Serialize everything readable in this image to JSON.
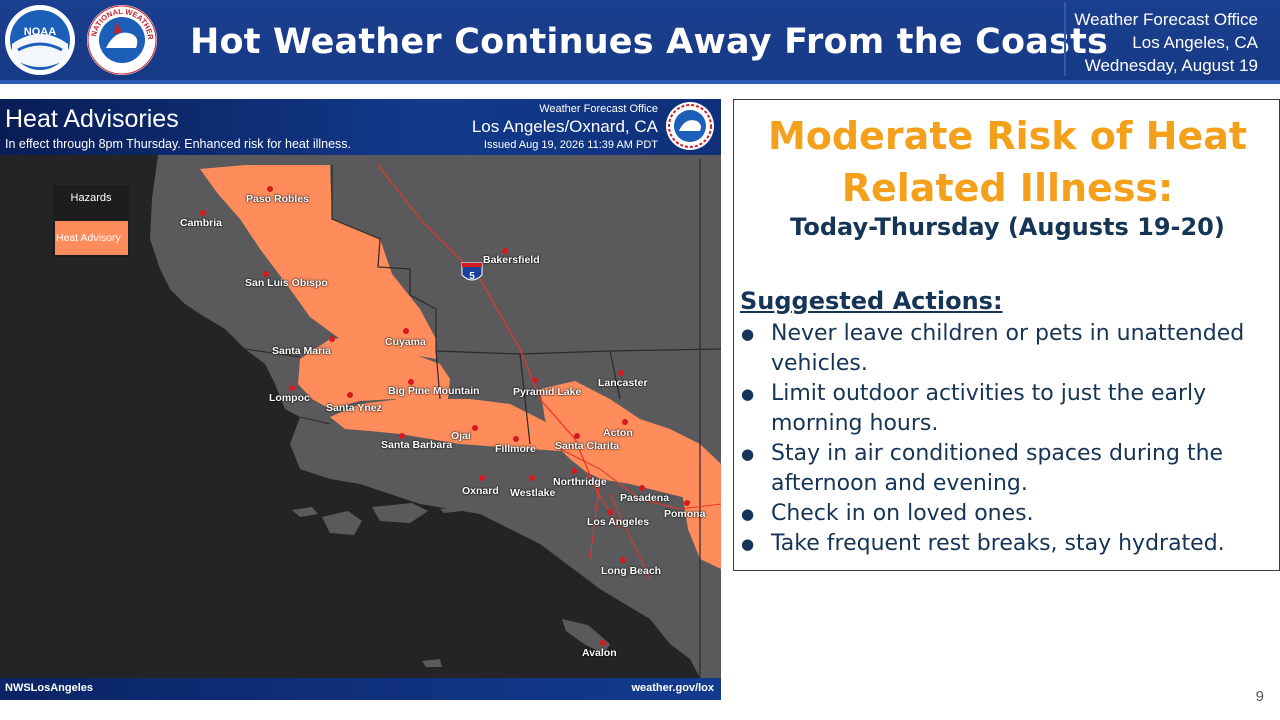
{
  "header": {
    "title": "Hot Weather Continues Away From the Coasts",
    "office_line1": "Weather Forecast Office",
    "office_line2": "Los Angeles, CA",
    "office_date": "Wednesday, August 19",
    "logos": [
      "noaa-logo",
      "national-weather-service-logo"
    ],
    "logo_text": {
      "noaa": "NOAA",
      "nws": "NATIONAL WEATHER SERVICE"
    }
  },
  "map": {
    "title": "Heat Advisories",
    "subtitle": "In effect through 8pm Thursday. Enhanced risk for heat illness.",
    "office_small": "Weather Forecast Office",
    "office_name": "Los Angeles/Oxnard, CA",
    "issued": "Issued Aug 19, 2026 11:39 AM PDT",
    "legend": {
      "header": "Hazards",
      "items": [
        {
          "label": "Heat Advisory",
          "color": "#ff8c5a"
        }
      ]
    },
    "highway_shield": "5",
    "cities": [
      {
        "name": "Paso Robles"
      },
      {
        "name": "Cambria"
      },
      {
        "name": "Bakersfield"
      },
      {
        "name": "San Luis Obispo"
      },
      {
        "name": "Cuyama"
      },
      {
        "name": "Santa Maria"
      },
      {
        "name": "Lancaster"
      },
      {
        "name": "Big Pine Mountain"
      },
      {
        "name": "Pyramid Lake"
      },
      {
        "name": "Lompoc"
      },
      {
        "name": "Santa Ynez"
      },
      {
        "name": "Acton"
      },
      {
        "name": "Ojai"
      },
      {
        "name": "Santa Barbara"
      },
      {
        "name": "Santa Clarita"
      },
      {
        "name": "Fillmore"
      },
      {
        "name": "Northridge"
      },
      {
        "name": "Oxnard"
      },
      {
        "name": "Westlake"
      },
      {
        "name": "Pasadena"
      },
      {
        "name": "Los Angeles"
      },
      {
        "name": "Pomona"
      },
      {
        "name": "Long Beach"
      },
      {
        "name": "Avalon"
      }
    ],
    "footer_left": "NWSLosAngeles",
    "footer_right": "weather.gov/lox",
    "colors": {
      "advisory": "#ff8c5a",
      "land": "#5a5a5c",
      "ocean": "#242426"
    }
  },
  "risk": {
    "title_line1": "Moderate Risk of Heat",
    "title_line2": "Related Illness:",
    "dates": "Today-Thursday (Augusts 19-20)",
    "actions_heading": "Suggested Actions:",
    "actions": [
      "Never leave children or pets in unattended vehicles.",
      "Limit outdoor activities to just the early morning hours.",
      "Stay in air conditioned spaces during the afternoon and evening.",
      "Check in on loved ones.",
      "Take frequent rest breaks, stay hydrated."
    ],
    "colors": {
      "title": "#f4a01a",
      "text": "#163456"
    }
  },
  "page_number": "9"
}
